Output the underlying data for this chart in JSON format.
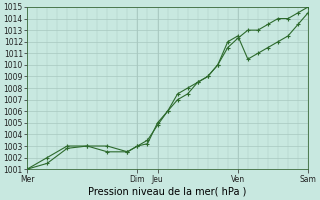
{
  "xlabel": "Pression niveau de la mer( hPa )",
  "background_color": "#c8e8e0",
  "grid_color": "#a8c8c0",
  "line_color": "#2d6a2d",
  "ylim": [
    1001,
    1015
  ],
  "yticks": [
    1001,
    1002,
    1003,
    1004,
    1005,
    1006,
    1007,
    1008,
    1009,
    1010,
    1011,
    1012,
    1013,
    1014,
    1015
  ],
  "xtick_labels": [
    "Mer",
    "Dim",
    "Jeu",
    "Ven",
    "Sam"
  ],
  "xtick_positions": [
    0,
    5.5,
    6.5,
    10.5,
    14
  ],
  "vline_positions": [
    0,
    5.5,
    6.5,
    10.5,
    14
  ],
  "series1_x": [
    0,
    1,
    2,
    3,
    4,
    5,
    5.5,
    6,
    6.5,
    7,
    7.5,
    8,
    8.5,
    9,
    9.5,
    10,
    10.5,
    11,
    11.5,
    12,
    12.5,
    13,
    13.5,
    14
  ],
  "series1_y": [
    1001,
    1001.5,
    1002.8,
    1003,
    1003,
    1002.5,
    1003,
    1003.5,
    1004.8,
    1006,
    1007,
    1007.5,
    1008.5,
    1009,
    1010,
    1011.5,
    1012.3,
    1013,
    1013,
    1013.5,
    1014,
    1014,
    1014.5,
    1015
  ],
  "series2_x": [
    0,
    1,
    2,
    3,
    4,
    5,
    5.5,
    6,
    6.5,
    7,
    7.5,
    8,
    8.5,
    9,
    9.5,
    10,
    10.5,
    11,
    11.5,
    12,
    12.5,
    13,
    13.5,
    14
  ],
  "series2_y": [
    1001,
    1002,
    1003,
    1003,
    1002.5,
    1002.5,
    1003,
    1003.2,
    1005,
    1006,
    1007.5,
    1008,
    1008.5,
    1009,
    1010,
    1012,
    1012.5,
    1010.5,
    1011,
    1011.5,
    1012,
    1012.5,
    1013.5,
    1014.5
  ],
  "ylabel_fontsize": 5.5,
  "xlabel_fontsize": 7,
  "xtick_fontsize": 5.5,
  "ytick_fontsize": 5.5
}
